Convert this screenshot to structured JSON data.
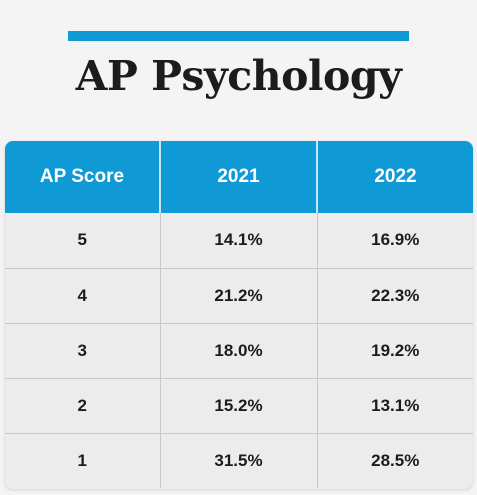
{
  "title": "AP Psychology",
  "colors": {
    "accent": "#0f9ad6",
    "header_bg": "#0f9ad6",
    "body_bg": "#ececec",
    "page_bg": "#f4f4f4"
  },
  "table": {
    "headers": [
      "AP Score",
      "2021",
      "2022"
    ],
    "rows": [
      [
        "5",
        "14.1%",
        "16.9%"
      ],
      [
        "4",
        "21.2%",
        "22.3%"
      ],
      [
        "3",
        "18.0%",
        "19.2%"
      ],
      [
        "2",
        "15.2%",
        "13.1%"
      ],
      [
        "1",
        "31.5%",
        "28.5%"
      ]
    ]
  }
}
